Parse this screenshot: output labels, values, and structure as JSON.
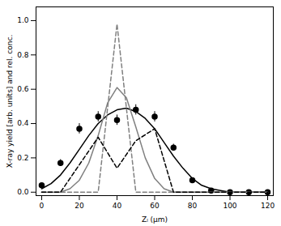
{
  "chart_data": {
    "type": "line",
    "x_label": "Zₗ (µm)",
    "y_label": "X-ray yield [arb. units] and rel. conc.",
    "xlim": [
      -3,
      123
    ],
    "ylim": [
      -0.02,
      1.08
    ],
    "xticks": [
      0,
      20,
      40,
      60,
      80,
      100,
      120
    ],
    "yticks": [
      {
        "value": 0,
        "label": "0.0"
      },
      {
        "value": 0.2,
        "label": "0.2"
      },
      {
        "value": 0.4,
        "label": "0.4"
      },
      {
        "value": 0.6,
        "label": "0.6"
      },
      {
        "value": 0.8,
        "label": "0.8"
      },
      {
        "value": 1.0,
        "label": "1.0"
      }
    ],
    "grid": false,
    "series": [
      {
        "type": "scatter",
        "color": "#000000",
        "marker": "circle",
        "x": [
          0,
          10,
          20,
          30,
          40,
          50,
          60,
          70,
          80,
          90,
          100,
          110,
          120
        ],
        "values": [
          0.04,
          0.17,
          0.37,
          0.44,
          0.42,
          0.48,
          0.44,
          0.26,
          0.07,
          0.01,
          0.0,
          0.0,
          0.0
        ],
        "errors": [
          0.01,
          0.02,
          0.03,
          0.03,
          0.03,
          0.03,
          0.03,
          0.02,
          0.01,
          0.01,
          0.005,
          0.005,
          0.005
        ]
      },
      {
        "type": "line",
        "color": "#000000",
        "line_style": "solid",
        "x": [
          0,
          5,
          10,
          15,
          20,
          25,
          30,
          35,
          40,
          45,
          50,
          55,
          60,
          65,
          70,
          75,
          80,
          85,
          90,
          95,
          100,
          110,
          120
        ],
        "values": [
          0.02,
          0.05,
          0.1,
          0.17,
          0.25,
          0.33,
          0.4,
          0.45,
          0.48,
          0.49,
          0.47,
          0.43,
          0.37,
          0.29,
          0.21,
          0.14,
          0.08,
          0.04,
          0.02,
          0.01,
          0.0,
          0.0,
          0.0
        ]
      },
      {
        "type": "line",
        "color": "#808080",
        "line_style": "solid",
        "x": [
          0,
          10,
          15,
          20,
          25,
          30,
          35,
          40,
          45,
          50,
          55,
          60,
          65,
          70,
          80,
          120
        ],
        "values": [
          0.0,
          0.0,
          0.02,
          0.07,
          0.17,
          0.33,
          0.52,
          0.61,
          0.55,
          0.38,
          0.2,
          0.08,
          0.02,
          0.0,
          0.0,
          0.0
        ]
      },
      {
        "type": "line",
        "color": "#808080",
        "line_style": "dashed",
        "x": [
          0,
          30,
          40,
          50,
          120
        ],
        "values": [
          0.0,
          0.0,
          0.98,
          0.0,
          0.0
        ]
      },
      {
        "type": "line",
        "color": "#000000",
        "line_style": "dashed",
        "x": [
          0,
          10,
          30,
          40,
          50,
          60,
          70,
          120
        ],
        "values": [
          0.0,
          0.0,
          0.32,
          0.14,
          0.3,
          0.37,
          0.0,
          0.0
        ]
      }
    ]
  }
}
